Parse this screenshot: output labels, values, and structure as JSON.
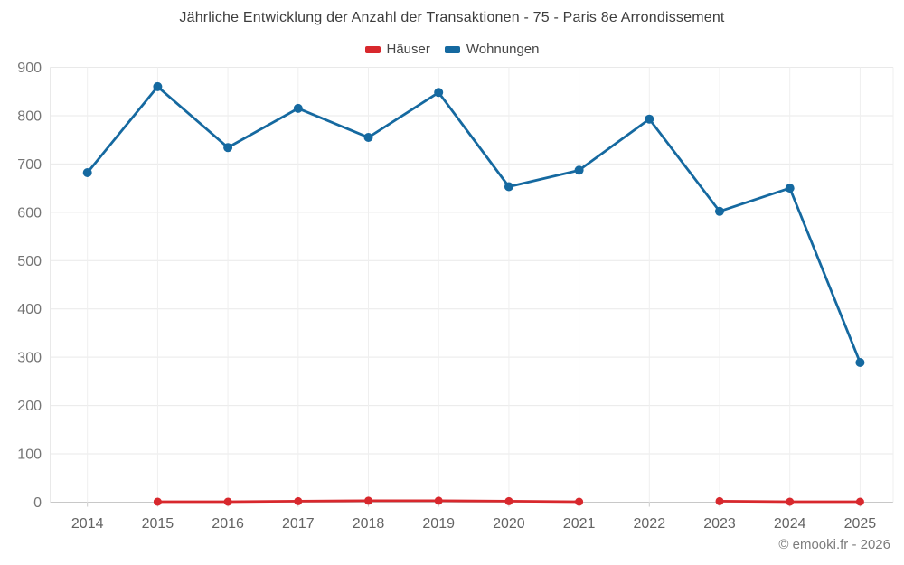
{
  "header": {
    "title": "Jährliche Entwicklung der Anzahl der Transaktionen - 75 - Paris 8e Arrondissement"
  },
  "legend": {
    "items": [
      {
        "label": "Häuser",
        "color": "#d8282d"
      },
      {
        "label": "Wohnungen",
        "color": "#1569a0"
      }
    ]
  },
  "footer": {
    "credit": "© emooki.fr - 2026"
  },
  "chart_data": {
    "type": "line",
    "title": "Jährliche Entwicklung der Anzahl der Transaktionen - 75 - Paris 8e Arrondissement",
    "categories": [
      "2014",
      "2015",
      "2016",
      "2017",
      "2018",
      "2019",
      "2020",
      "2021",
      "2022",
      "2023",
      "2024",
      "2025"
    ],
    "series": [
      {
        "name": "Häuser",
        "color": "#d8282d",
        "values": [
          null,
          1,
          1,
          2,
          3,
          3,
          2,
          1,
          null,
          2,
          1,
          1
        ]
      },
      {
        "name": "Wohnungen",
        "color": "#1569a0",
        "values": [
          682,
          860,
          734,
          815,
          755,
          848,
          653,
          687,
          793,
          602,
          650,
          289
        ]
      }
    ],
    "xlabel": "",
    "ylabel": "",
    "ylim": [
      0,
      900
    ],
    "ytick_step": 100,
    "grid": true,
    "legend_position": "top",
    "marker": "circle"
  }
}
